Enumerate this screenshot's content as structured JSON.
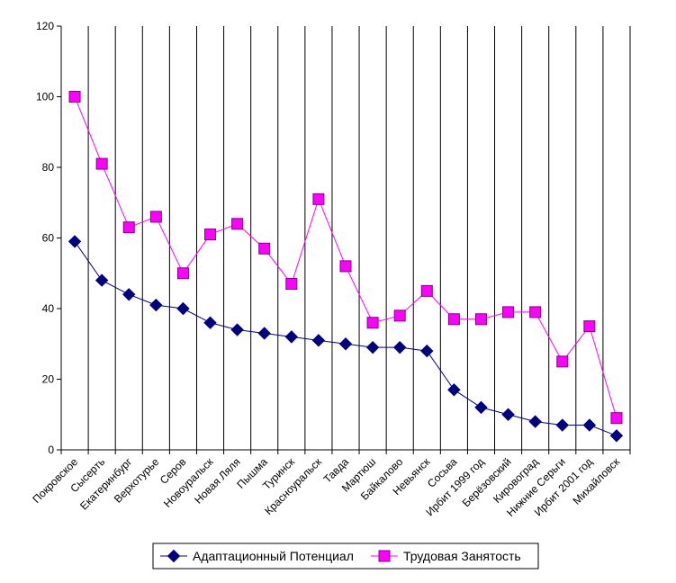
{
  "chart_data": {
    "type": "line",
    "title": "",
    "xlabel": "",
    "ylabel": "",
    "ylim": [
      0,
      120
    ],
    "yticks": [
      0,
      20,
      40,
      60,
      80,
      100,
      120
    ],
    "grid": "vertical",
    "legend_position": "bottom",
    "categories": [
      "Покровское",
      "Сысерть",
      "Екатеринбург",
      "Верхотурье",
      "Серов",
      "Новоуральск",
      "Новая Ляля",
      "Пышма",
      "Туринск",
      "Красноуральск",
      "Тавда",
      "Мартюш",
      "Байкалово",
      "Невьянск",
      "Сосьва",
      "Ирбит 1999 год",
      "Берёзовский",
      "Кировоград",
      "Нижние Серьги",
      "Ирбит 2001 год",
      "Михайловск"
    ],
    "series": [
      {
        "name": "Адаптационный Потенциал",
        "color": "#000080",
        "marker": "diamond",
        "values": [
          59,
          48,
          44,
          41,
          40,
          36,
          34,
          33,
          32,
          31,
          30,
          29,
          29,
          28,
          17,
          12,
          10,
          8,
          7,
          7,
          4
        ]
      },
      {
        "name": "Трудовая Занятость",
        "color": "#ff00ff",
        "marker": "square",
        "values": [
          100,
          81,
          63,
          66,
          50,
          61,
          64,
          57,
          47,
          71,
          52,
          36,
          38,
          45,
          37,
          37,
          39,
          39,
          25,
          35,
          9
        ]
      }
    ]
  }
}
